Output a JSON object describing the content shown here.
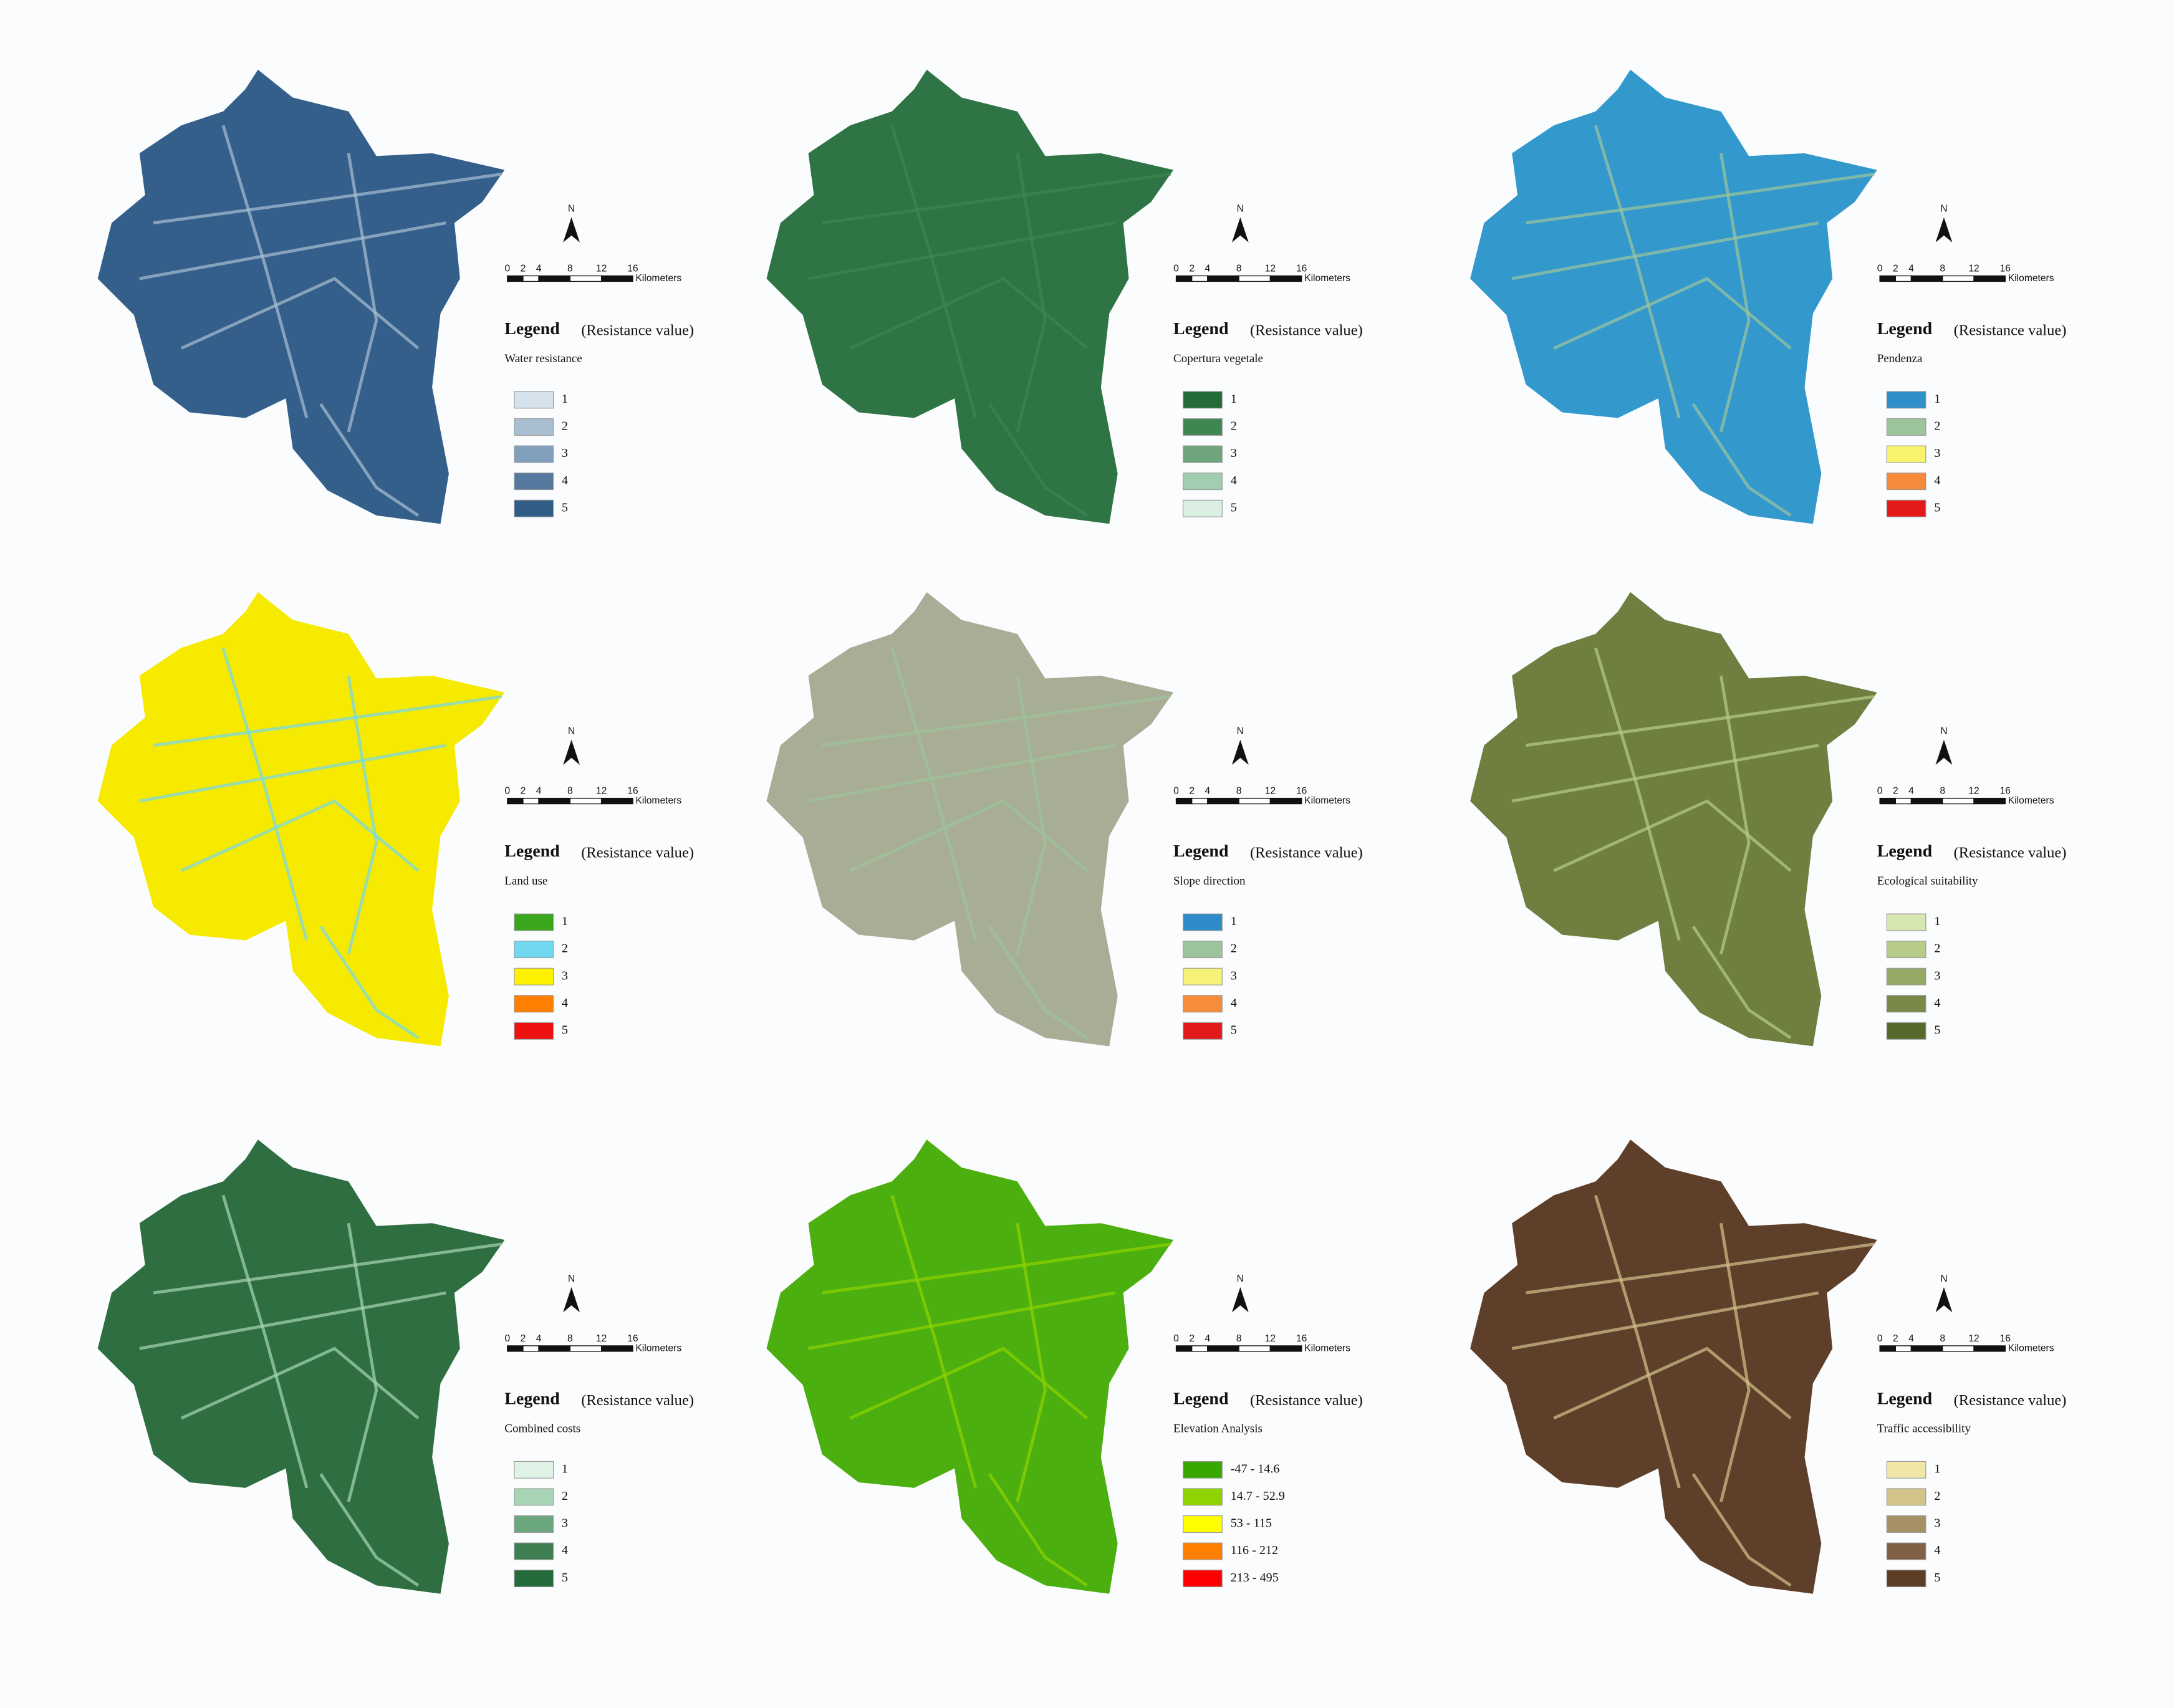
{
  "north_label": "N",
  "scale_ticks": [
    0,
    2,
    4,
    8,
    12,
    16
  ],
  "scale_unit": "Kilometers",
  "legend_heading": "Legend",
  "legend_note": "(Resistance value)",
  "panels": [
    {
      "title": "Water resistance",
      "map_color": "#335f8a",
      "items": [
        {
          "label": "1",
          "color": "#d6e3ec"
        },
        {
          "label": "2",
          "color": "#a9bfd1"
        },
        {
          "label": "3",
          "color": "#7f9fbb"
        },
        {
          "label": "4",
          "color": "#55799f"
        },
        {
          "label": "5",
          "color": "#315d87"
        }
      ]
    },
    {
      "title": "Copertura vegetale",
      "map_color": "#2f7445",
      "items": [
        {
          "label": "1",
          "color": "#256b3a"
        },
        {
          "label": "2",
          "color": "#3f8653"
        },
        {
          "label": "3",
          "color": "#6ea57c"
        },
        {
          "label": "4",
          "color": "#a3cdb0"
        },
        {
          "label": "5",
          "color": "#dcefe3"
        }
      ]
    },
    {
      "title": "Pendenza",
      "map_color": "#3399cc",
      "items": [
        {
          "label": "1",
          "color": "#2f8fc9"
        },
        {
          "label": "2",
          "color": "#9dc49c"
        },
        {
          "label": "3",
          "color": "#f7f36a"
        },
        {
          "label": "4",
          "color": "#f58b3a"
        },
        {
          "label": "5",
          "color": "#e31a1c"
        }
      ]
    },
    {
      "title": "Land use",
      "map_color": "#f5ea00",
      "items": [
        {
          "label": "1",
          "color": "#3aa61b"
        },
        {
          "label": "2",
          "color": "#72d8f0"
        },
        {
          "label": "3",
          "color": "#fff200"
        },
        {
          "label": "4",
          "color": "#ff7f00"
        },
        {
          "label": "5",
          "color": "#ee1111"
        }
      ]
    },
    {
      "title": "Slope direction",
      "map_color": "#a8ae95",
      "items": [
        {
          "label": "1",
          "color": "#2e8bc7"
        },
        {
          "label": "2",
          "color": "#9cc39c"
        },
        {
          "label": "3",
          "color": "#f6f277"
        },
        {
          "label": "4",
          "color": "#f58d3b"
        },
        {
          "label": "5",
          "color": "#e31a1c"
        }
      ]
    },
    {
      "title": "Ecological suitability",
      "map_color": "#6e7f3f",
      "items": [
        {
          "label": "1",
          "color": "#d6e8b0"
        },
        {
          "label": "2",
          "color": "#b8cc8a"
        },
        {
          "label": "3",
          "color": "#96a966"
        },
        {
          "label": "4",
          "color": "#78894a"
        },
        {
          "label": "5",
          "color": "#576a2c"
        }
      ]
    },
    {
      "title": "Combined costs",
      "map_color": "#2e6e40",
      "items": [
        {
          "label": "1",
          "color": "#dff2e6"
        },
        {
          "label": "2",
          "color": "#a8d4b6"
        },
        {
          "label": "3",
          "color": "#6ba77d"
        },
        {
          "label": "4",
          "color": "#3f7f52"
        },
        {
          "label": "5",
          "color": "#246a3a"
        }
      ]
    },
    {
      "title": "Elevation Analysis",
      "map_color": "#4caf10",
      "items": [
        {
          "label": "-47 - 14.6",
          "color": "#38a800"
        },
        {
          "label": "14.7 - 52.9",
          "color": "#8fd400"
        },
        {
          "label": "53 - 115",
          "color": "#ffff00"
        },
        {
          "label": "116 - 212",
          "color": "#ff8000"
        },
        {
          "label": "213 - 495",
          "color": "#ff0000"
        }
      ]
    },
    {
      "title": "Traffic accessibility",
      "map_color": "#5e3f2a",
      "items": [
        {
          "label": "1",
          "color": "#efe6a8"
        },
        {
          "label": "2",
          "color": "#d2c38a"
        },
        {
          "label": "3",
          "color": "#a89065"
        },
        {
          "label": "4",
          "color": "#806145"
        },
        {
          "label": "5",
          "color": "#5c3d26"
        }
      ]
    }
  ]
}
